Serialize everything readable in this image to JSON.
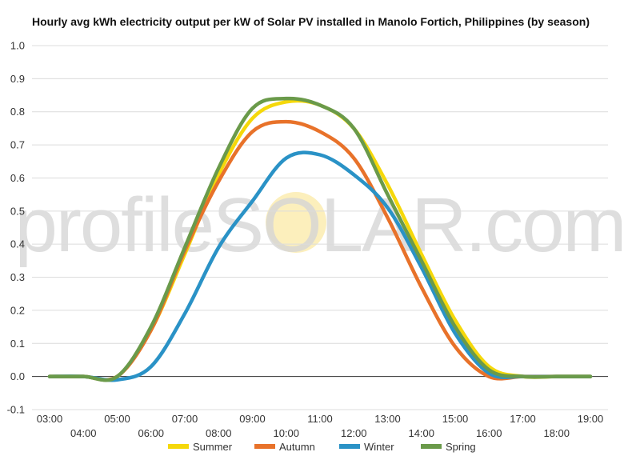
{
  "chart_data": {
    "type": "line",
    "title": "Hourly avg kWh electricity output per kW of Solar PV installed in Manolo Fortich, Philippines (by season)",
    "xlabel": "",
    "ylabel": "",
    "x": [
      "03:00",
      "04:00",
      "05:00",
      "06:00",
      "07:00",
      "08:00",
      "09:00",
      "10:00",
      "11:00",
      "12:00",
      "13:00",
      "14:00",
      "15:00",
      "16:00",
      "17:00",
      "18:00",
      "19:00"
    ],
    "ylim": [
      -0.1,
      1.0
    ],
    "yticks": [
      "-0.1",
      "0.0",
      "0.1",
      "0.2",
      "0.3",
      "0.4",
      "0.5",
      "0.6",
      "0.7",
      "0.8",
      "0.9",
      "1.0"
    ],
    "grid": true,
    "legend_position": "bottom",
    "watermark": "profileSOLAR.com",
    "series": [
      {
        "name": "Summer",
        "color": "#f5d80a",
        "values": [
          0.0,
          0.0,
          0.0,
          0.14,
          0.37,
          0.61,
          0.78,
          0.83,
          0.82,
          0.75,
          0.58,
          0.37,
          0.17,
          0.03,
          0.0,
          0.0,
          0.0
        ]
      },
      {
        "name": "Autumn",
        "color": "#e8722a",
        "values": [
          0.0,
          0.0,
          0.0,
          0.14,
          0.38,
          0.59,
          0.74,
          0.77,
          0.74,
          0.66,
          0.48,
          0.27,
          0.09,
          0.0,
          0.0,
          0.0,
          0.0
        ]
      },
      {
        "name": "Winter",
        "color": "#2a92c6",
        "values": [
          0.0,
          0.0,
          -0.01,
          0.03,
          0.19,
          0.39,
          0.53,
          0.66,
          0.67,
          0.61,
          0.51,
          0.33,
          0.13,
          0.01,
          0.0,
          0.0,
          0.0
        ]
      },
      {
        "name": "Spring",
        "color": "#6a9a4a",
        "values": [
          0.0,
          0.0,
          0.0,
          0.15,
          0.39,
          0.63,
          0.81,
          0.84,
          0.82,
          0.75,
          0.55,
          0.35,
          0.15,
          0.02,
          0.0,
          0.0,
          0.0
        ]
      }
    ]
  }
}
